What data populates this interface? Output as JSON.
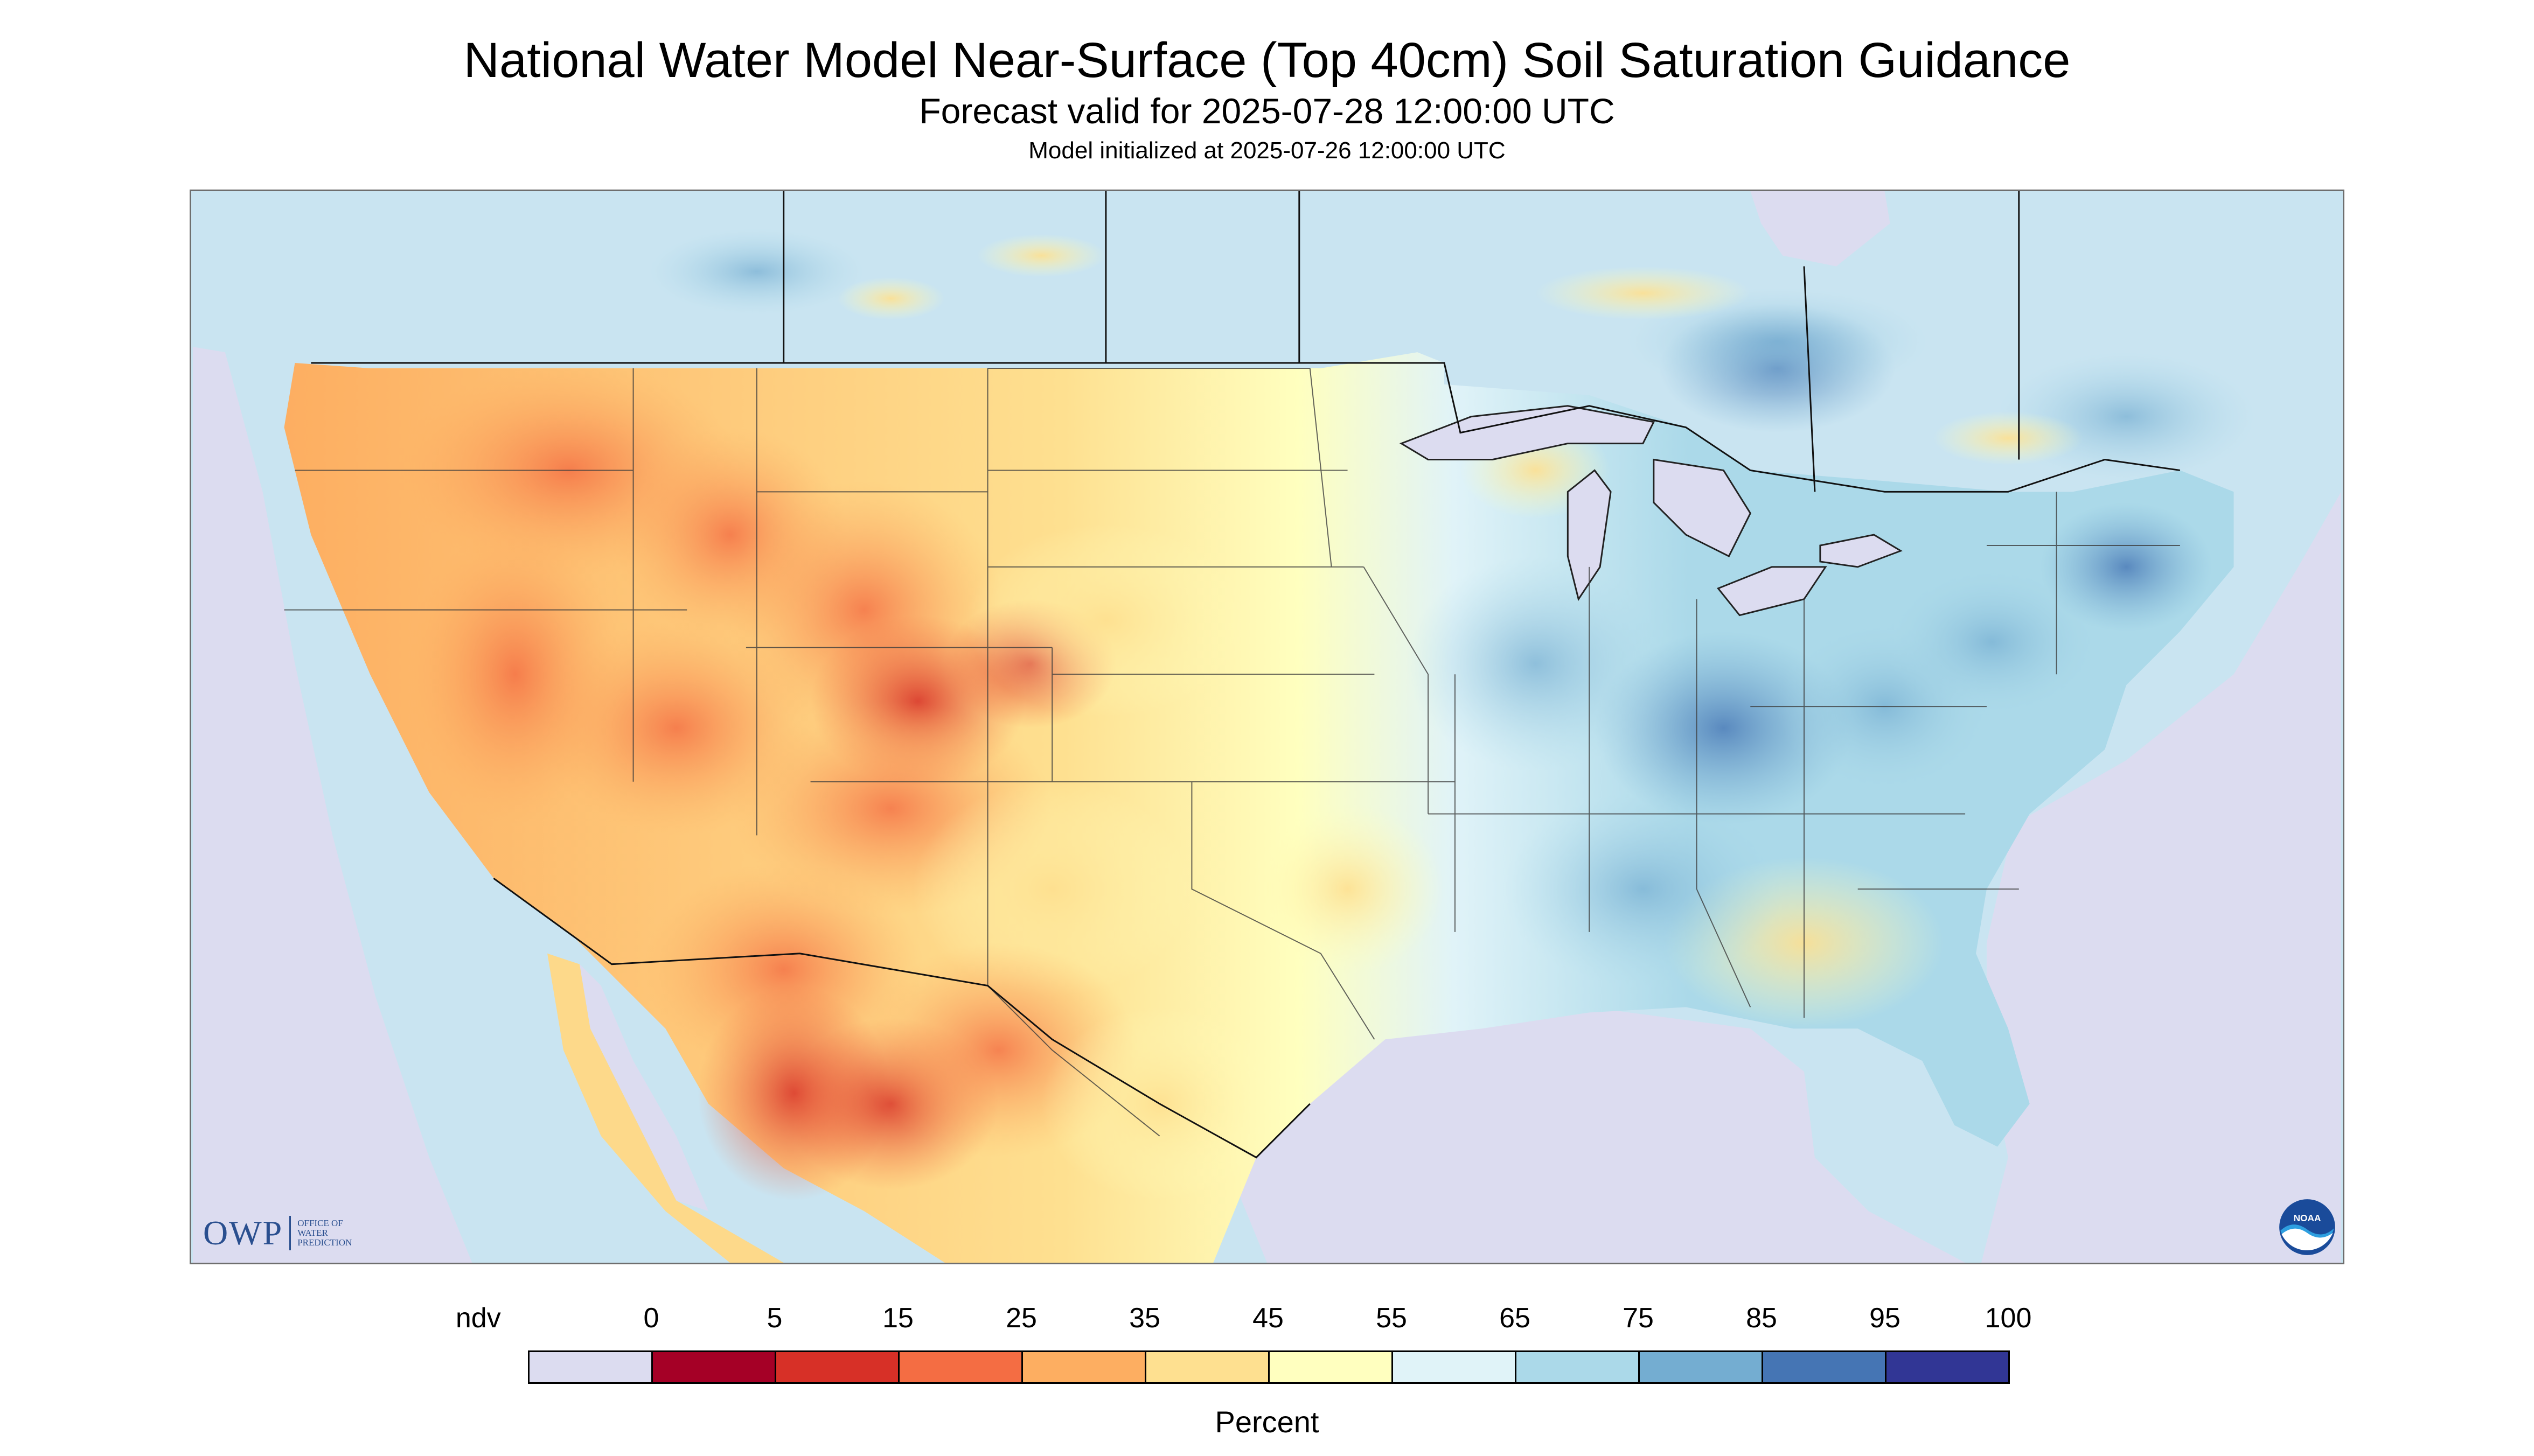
{
  "header": {
    "title": "National Water Model Near-Surface (Top 40cm) Soil Saturation Guidance",
    "subtitle": "Forecast valid for 2025-07-28 12:00:00 UTC",
    "init_line": "Model initialized at 2025-07-26 12:00:00 UTC"
  },
  "logos": {
    "owp_mark": "OWP",
    "owp_text_1": "Office of",
    "owp_text_2": "Water",
    "owp_text_3": "Prediction",
    "noaa_text": "NOAA"
  },
  "legend": {
    "caption": "Percent",
    "labels": [
      "ndv",
      "0",
      "5",
      "15",
      "25",
      "35",
      "45",
      "55",
      "65",
      "75",
      "85",
      "95",
      "100"
    ],
    "colors": [
      "#dcdcf0",
      "#a50026",
      "#d73027",
      "#f46d43",
      "#fdae61",
      "#fee090",
      "#ffffbf",
      "#e0f3f8",
      "#abd9e9",
      "#74add1",
      "#4575b4",
      "#313695"
    ]
  },
  "map": {
    "no_data_color": "#dcdcf0",
    "water_color": "#dcdcf0",
    "dry_colors": [
      "#d73027",
      "#f46d43",
      "#fdae61",
      "#fee090"
    ],
    "wet_colors": [
      "#e0f3f8",
      "#abd9e9",
      "#74add1",
      "#4575b4"
    ],
    "boundary_color": "#3c3c3c"
  }
}
